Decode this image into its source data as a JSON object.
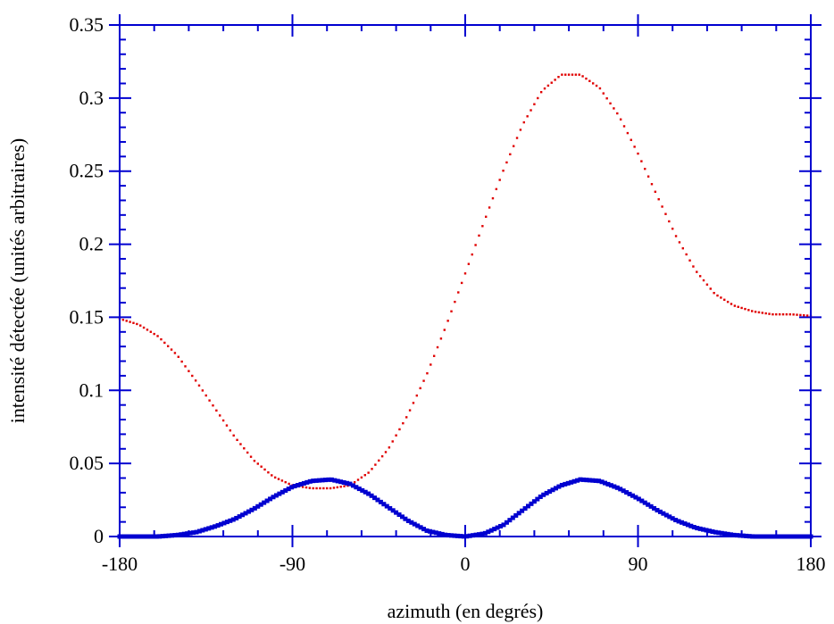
{
  "chart_data": {
    "type": "scatter",
    "xlabel": "azimuth (en degrés)",
    "ylabel": "intensité détectée (unités arbitraires)",
    "xlim": [
      -180,
      180
    ],
    "ylim": [
      0,
      0.35
    ],
    "x_ticks": [
      -180,
      -90,
      0,
      90,
      180
    ],
    "x_tick_labels": [
      "-180",
      "-90",
      "0",
      "90",
      "180"
    ],
    "y_ticks": [
      0,
      0.05,
      0.1,
      0.15,
      0.2,
      0.25,
      0.3,
      0.35
    ],
    "y_tick_labels": [
      "0",
      "0.05",
      "0.1",
      "0.15",
      "0.2",
      "0.25",
      "0.3",
      "0.35"
    ],
    "grid": false,
    "series": [
      {
        "color": "#e00000",
        "marker": "small-dots",
        "points": [
          [
            -180,
            0.149
          ],
          [
            -170,
            0.145
          ],
          [
            -160,
            0.137
          ],
          [
            -150,
            0.124
          ],
          [
            -140,
            0.106
          ],
          [
            -130,
            0.087
          ],
          [
            -120,
            0.068
          ],
          [
            -110,
            0.052
          ],
          [
            -100,
            0.041
          ],
          [
            -90,
            0.035
          ],
          [
            -80,
            0.033
          ],
          [
            -70,
            0.033
          ],
          [
            -60,
            0.035
          ],
          [
            -50,
            0.044
          ],
          [
            -40,
            0.06
          ],
          [
            -30,
            0.083
          ],
          [
            -20,
            0.111
          ],
          [
            -10,
            0.144
          ],
          [
            0,
            0.18
          ],
          [
            10,
            0.216
          ],
          [
            20,
            0.251
          ],
          [
            30,
            0.282
          ],
          [
            40,
            0.305
          ],
          [
            50,
            0.316
          ],
          [
            60,
            0.316
          ],
          [
            70,
            0.307
          ],
          [
            80,
            0.288
          ],
          [
            90,
            0.262
          ],
          [
            100,
            0.233
          ],
          [
            110,
            0.205
          ],
          [
            120,
            0.182
          ],
          [
            130,
            0.166
          ],
          [
            140,
            0.158
          ],
          [
            150,
            0.154
          ],
          [
            160,
            0.152
          ],
          [
            170,
            0.152
          ],
          [
            180,
            0.151
          ]
        ]
      },
      {
        "color": "#0000d0",
        "marker": "thick-squares",
        "points": [
          [
            -180,
            0.0
          ],
          [
            -170,
            0.0
          ],
          [
            -160,
            0.0
          ],
          [
            -150,
            0.001
          ],
          [
            -140,
            0.003
          ],
          [
            -130,
            0.007
          ],
          [
            -120,
            0.012
          ],
          [
            -110,
            0.019
          ],
          [
            -100,
            0.027
          ],
          [
            -90,
            0.034
          ],
          [
            -80,
            0.038
          ],
          [
            -70,
            0.039
          ],
          [
            -60,
            0.036
          ],
          [
            -50,
            0.029
          ],
          [
            -40,
            0.02
          ],
          [
            -30,
            0.011
          ],
          [
            -20,
            0.004
          ],
          [
            -10,
            0.001
          ],
          [
            0,
            0.0
          ],
          [
            10,
            0.002
          ],
          [
            20,
            0.008
          ],
          [
            30,
            0.018
          ],
          [
            40,
            0.028
          ],
          [
            50,
            0.035
          ],
          [
            60,
            0.039
          ],
          [
            70,
            0.038
          ],
          [
            80,
            0.033
          ],
          [
            90,
            0.026
          ],
          [
            100,
            0.018
          ],
          [
            110,
            0.011
          ],
          [
            120,
            0.006
          ],
          [
            130,
            0.003
          ],
          [
            140,
            0.001
          ],
          [
            150,
            0.0
          ],
          [
            160,
            0.0
          ],
          [
            170,
            0.0
          ],
          [
            180,
            0.0
          ]
        ]
      }
    ]
  }
}
